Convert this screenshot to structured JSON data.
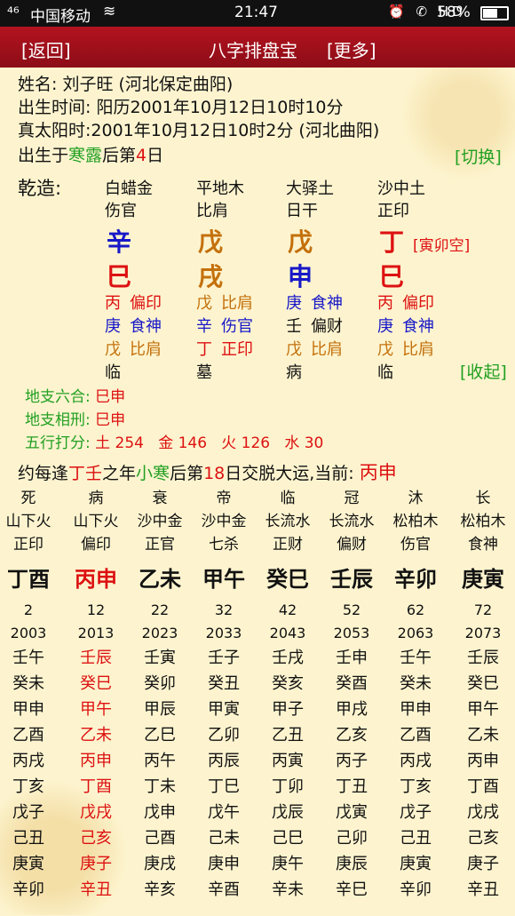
{
  "status": {
    "signal": "⁴⁶",
    "carrier": "中国移动",
    "time": "21:47",
    "icons": "⏰ ✆ HD",
    "battery": "58%"
  },
  "nav": {
    "back": "[返回]",
    "title": "八字排盘宝",
    "more": "[更多]"
  },
  "info": {
    "name": "姓名: 刘子旺 (河北保定曲阳)",
    "birth": "出生时间: 阳历2001年10月12日10时10分",
    "solar": "真太阳时:2001年10月12日10时2分 (河北曲阳)",
    "term_pre": "出生于",
    "term": "寒露",
    "term_mid": "后第",
    "term_day": "4",
    "term_post": "日",
    "switch": "[切换]"
  },
  "chart": {
    "label": "乾造:",
    "pillars": [
      {
        "nayin": "白蜡金",
        "shishen": "伤官",
        "stem": "辛",
        "stem_color": "blue",
        "branch": "巳",
        "branch_color": "red",
        "hidden": [
          {
            "c": "丙",
            "g": "偏印",
            "color": "red"
          },
          {
            "c": "庚",
            "g": "食神",
            "color": "blue"
          },
          {
            "c": "戊",
            "g": "比肩",
            "color": "brown"
          }
        ],
        "state": "临"
      },
      {
        "nayin": "平地木",
        "shishen": "比肩",
        "stem": "戊",
        "stem_color": "brown",
        "branch": "戌",
        "branch_color": "brown",
        "hidden": [
          {
            "c": "戊",
            "g": "比肩",
            "color": "brown"
          },
          {
            "c": "辛",
            "g": "伤官",
            "color": "blue"
          },
          {
            "c": "丁",
            "g": "正印",
            "color": "red"
          }
        ],
        "state": "墓"
      },
      {
        "nayin": "大驿土",
        "shishen": "日干",
        "stem": "戊",
        "stem_color": "brown",
        "branch": "申",
        "branch_color": "blue",
        "hidden": [
          {
            "c": "庚",
            "g": "食神",
            "color": "blue"
          },
          {
            "c": "壬",
            "g": "偏财",
            "color": "black"
          },
          {
            "c": "戊",
            "g": "比肩",
            "color": "brown"
          }
        ],
        "state": "病"
      },
      {
        "nayin": "沙中土",
        "shishen": "正印",
        "stem": "丁",
        "stem_color": "red",
        "branch": "巳",
        "branch_color": "red",
        "hidden": [
          {
            "c": "丙",
            "g": "偏印",
            "color": "red"
          },
          {
            "c": "庚",
            "g": "食神",
            "color": "blue"
          },
          {
            "c": "戊",
            "g": "比肩",
            "color": "brown"
          }
        ],
        "state": "临"
      }
    ],
    "kong": "[寅卯空]",
    "fold": "[收起]"
  },
  "relations": [
    {
      "label": "地支六合:",
      "value": "巳申"
    },
    {
      "label": "地支相刑:",
      "value": "巳申"
    }
  ],
  "wuxing": {
    "label": "五行打分:",
    "value": "土 254   金 146   火 126   水 30"
  },
  "dayun_line": {
    "pre": "约每逢",
    "y1": "丁壬",
    "mid1": "之年",
    "t": "小寒",
    "mid2": "后第",
    "d": "18",
    "post": "日交脱大运,当前:",
    "cur": "丙申"
  },
  "dayun": [
    {
      "state": "死",
      "nayin": "山下火",
      "ss": "正印",
      "gz": "丁酉",
      "age": "2",
      "year": "2003",
      "red": false,
      "years": [
        "壬午",
        "癸未",
        "甲申",
        "乙酉",
        "丙戌",
        "丁亥",
        "戊子",
        "己丑",
        "庚寅",
        "辛卯"
      ]
    },
    {
      "state": "病",
      "nayin": "山下火",
      "ss": "偏印",
      "gz": "丙申",
      "age": "12",
      "year": "2013",
      "red": true,
      "years": [
        "壬辰",
        "癸巳",
        "甲午",
        "乙未",
        "丙申",
        "丁酉",
        "戊戌",
        "己亥",
        "庚子",
        "辛丑"
      ]
    },
    {
      "state": "衰",
      "nayin": "沙中金",
      "ss": "正官",
      "gz": "乙未",
      "age": "22",
      "year": "2023",
      "red": false,
      "years": [
        "壬寅",
        "癸卯",
        "甲辰",
        "乙巳",
        "丙午",
        "丁未",
        "戊申",
        "己酉",
        "庚戌",
        "辛亥"
      ]
    },
    {
      "state": "帝",
      "nayin": "沙中金",
      "ss": "七杀",
      "gz": "甲午",
      "age": "32",
      "year": "2033",
      "red": false,
      "years": [
        "壬子",
        "癸丑",
        "甲寅",
        "乙卯",
        "丙辰",
        "丁巳",
        "戊午",
        "己未",
        "庚申",
        "辛酉"
      ]
    },
    {
      "state": "临",
      "nayin": "长流水",
      "ss": "正财",
      "gz": "癸巳",
      "age": "42",
      "year": "2043",
      "red": false,
      "years": [
        "壬戌",
        "癸亥",
        "甲子",
        "乙丑",
        "丙寅",
        "丁卯",
        "戊辰",
        "己巳",
        "庚午",
        "辛未"
      ]
    },
    {
      "state": "冠",
      "nayin": "长流水",
      "ss": "偏财",
      "gz": "壬辰",
      "age": "52",
      "year": "2053",
      "red": false,
      "years": [
        "壬申",
        "癸酉",
        "甲戌",
        "乙亥",
        "丙子",
        "丁丑",
        "戊寅",
        "己卯",
        "庚辰",
        "辛巳"
      ]
    },
    {
      "state": "沐",
      "nayin": "松柏木",
      "ss": "伤官",
      "gz": "辛卯",
      "age": "62",
      "year": "2063",
      "red": false,
      "years": [
        "壬午",
        "癸未",
        "甲申",
        "乙酉",
        "丙戌",
        "丁亥",
        "戊子",
        "己丑",
        "庚寅",
        "辛卯"
      ]
    },
    {
      "state": "长",
      "nayin": "松柏木",
      "ss": "食神",
      "gz": "庚寅",
      "age": "72",
      "year": "2073",
      "red": false,
      "years": [
        "壬辰",
        "癸巳",
        "甲午",
        "乙未",
        "丙申",
        "丁酉",
        "戊戌",
        "己亥",
        "庚子",
        "辛丑"
      ]
    }
  ]
}
